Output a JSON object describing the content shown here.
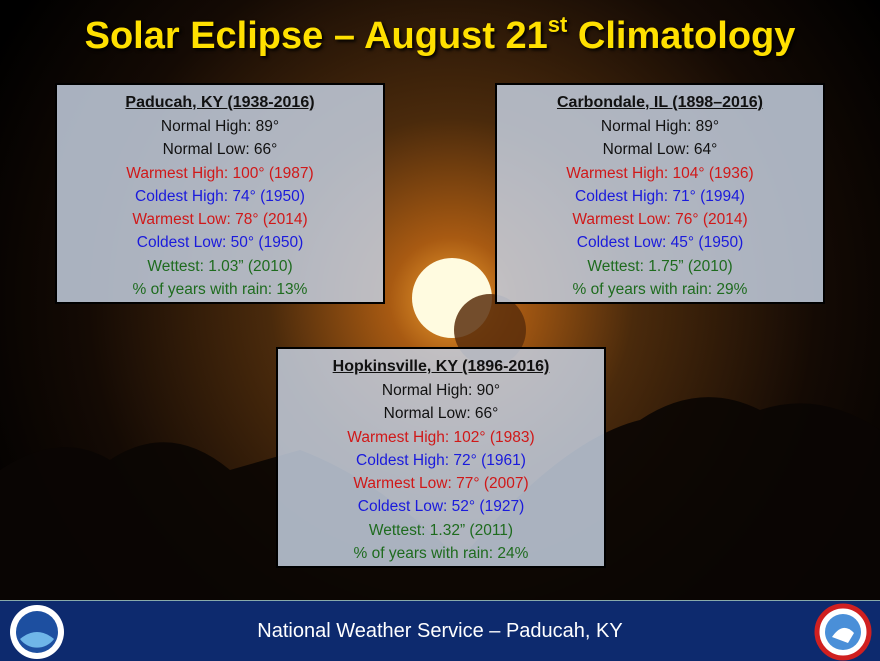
{
  "header": {
    "title_main": "Solar Eclipse – August 21",
    "title_sup": "st",
    "title_end": " Climatology"
  },
  "boxes": [
    {
      "title": "Paducah, KY (1938-2016)",
      "lines": [
        {
          "text": "Normal High: 89°",
          "color": "#111111"
        },
        {
          "text": "Normal Low: 66°",
          "color": "#111111"
        },
        {
          "text": "Warmest High: 100° (1987)",
          "color": "#d01818"
        },
        {
          "text": "Coldest High: 74° (1950)",
          "color": "#1a1adc"
        },
        {
          "text": "Warmest Low: 78° (2014)",
          "color": "#d01818"
        },
        {
          "text": "Coldest Low: 50° (1950)",
          "color": "#1a1adc"
        },
        {
          "text": "Wettest: 1.03” (2010)",
          "color": "#1e6b1e"
        },
        {
          "text": "% of years with rain: 13%",
          "color": "#1e6b1e"
        }
      ]
    },
    {
      "title": "Carbondale, IL (1898–2016)",
      "lines": [
        {
          "text": "Normal High: 89°",
          "color": "#111111"
        },
        {
          "text": "Normal Low: 64°",
          "color": "#111111"
        },
        {
          "text": "Warmest High: 104° (1936)",
          "color": "#d01818"
        },
        {
          "text": "Coldest High: 71° (1994)",
          "color": "#1a1adc"
        },
        {
          "text": "Warmest Low: 76° (2014)",
          "color": "#d01818"
        },
        {
          "text": "Coldest Low: 45° (1950)",
          "color": "#1a1adc"
        },
        {
          "text": "Wettest: 1.75” (2010)",
          "color": "#1e6b1e"
        },
        {
          "text": "% of years with rain: 29%",
          "color": "#1e6b1e"
        }
      ]
    },
    {
      "title": "Hopkinsville, KY (1896-2016)",
      "lines": [
        {
          "text": "Normal High: 90°",
          "color": "#111111"
        },
        {
          "text": "Normal Low: 66°",
          "color": "#111111"
        },
        {
          "text": "Warmest High: 102° (1983)",
          "color": "#d01818"
        },
        {
          "text": "Coldest High: 72° (1961)",
          "color": "#1a1adc"
        },
        {
          "text": "Warmest Low: 77° (2007)",
          "color": "#d01818"
        },
        {
          "text": "Coldest Low: 52° (1927)",
          "color": "#1a1adc"
        },
        {
          "text": "Wettest: 1.32” (2011)",
          "color": "#1e6b1e"
        },
        {
          "text": "% of years with rain: 24%",
          "color": "#1e6b1e"
        }
      ]
    }
  ],
  "footer": {
    "text": "National Weather Service – Paducah, KY"
  }
}
